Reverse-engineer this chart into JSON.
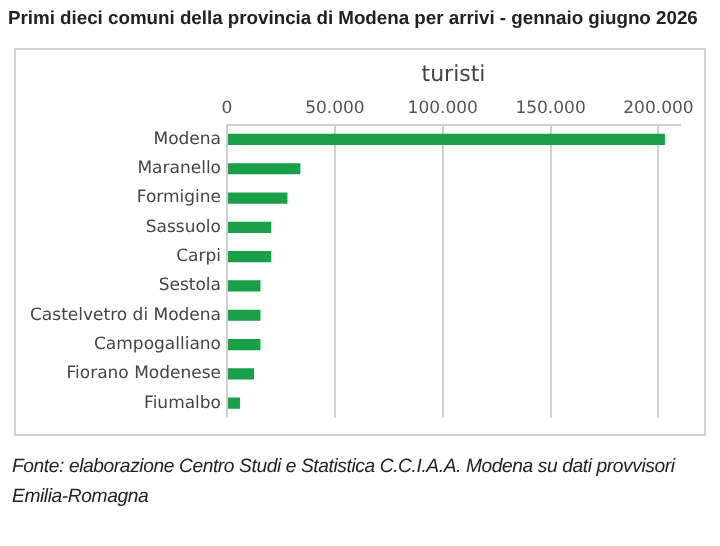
{
  "chart_data": {
    "type": "bar",
    "orientation": "horizontal",
    "title": "Primi dieci comuni della provincia di Modena per arrivi - gennaio giugno 2026",
    "xlabel": "turisti",
    "categories": [
      "Modena",
      "Maranello",
      "Formigine",
      "Sassuolo",
      "Carpi",
      "Sestola",
      "Castelvetro di Modena",
      "Campogalliano",
      "Fiorano Modenese",
      "Fiumalbo"
    ],
    "values": [
      203000,
      34000,
      28000,
      20500,
      20500,
      15500,
      15500,
      15500,
      12500,
      6000
    ],
    "color": "#1aa048",
    "xlim": [
      0,
      210000
    ],
    "xticks": [
      0,
      {
        "value": 50000,
        "label": "50.000"
      },
      {
        "value": 100000,
        "label": "100.000"
      },
      {
        "value": 150000,
        "label": "150.000"
      },
      {
        "value": 200000,
        "label": "200.000"
      }
    ],
    "grid": "x",
    "annotations": [
      "Fonte: elaborazione Centro Studi e Statistica C.C.I.A.A. Modena su dati provvisori Emilia-Romagna"
    ]
  }
}
